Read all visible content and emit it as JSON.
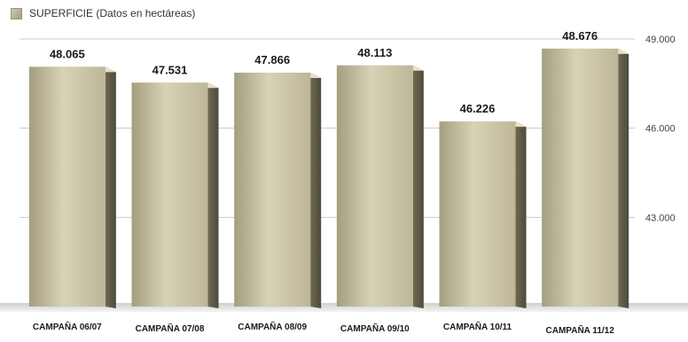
{
  "chart_data": {
    "type": "bar",
    "legend": "SUPERFICIE (Datos en hectáreas)",
    "categories": [
      "CAMPAÑA 06/07",
      "CAMPAÑA 07/08",
      "CAMPAÑA 08/09",
      "CAMPAÑA 09/10",
      "CAMPAÑA 10/11",
      "CAMPAÑA 11/12"
    ],
    "values": [
      48065,
      47531,
      47866,
      48113,
      46226,
      48676
    ],
    "value_labels": [
      "48.065",
      "47.531",
      "47.866",
      "48.113",
      "46.226",
      "48.676"
    ],
    "y_ticks": [
      43000,
      46000,
      49000
    ],
    "y_tick_labels": [
      "43.000",
      "46.000",
      "49.000"
    ],
    "ylim": [
      40000,
      49000
    ],
    "grid": true,
    "legend_position": "top-left",
    "colors": {
      "bar_light": "#d8d2b6",
      "bar_mid": "#b7b091",
      "bar_dark": "#8d866a",
      "grid": "#c9c9c9"
    }
  }
}
